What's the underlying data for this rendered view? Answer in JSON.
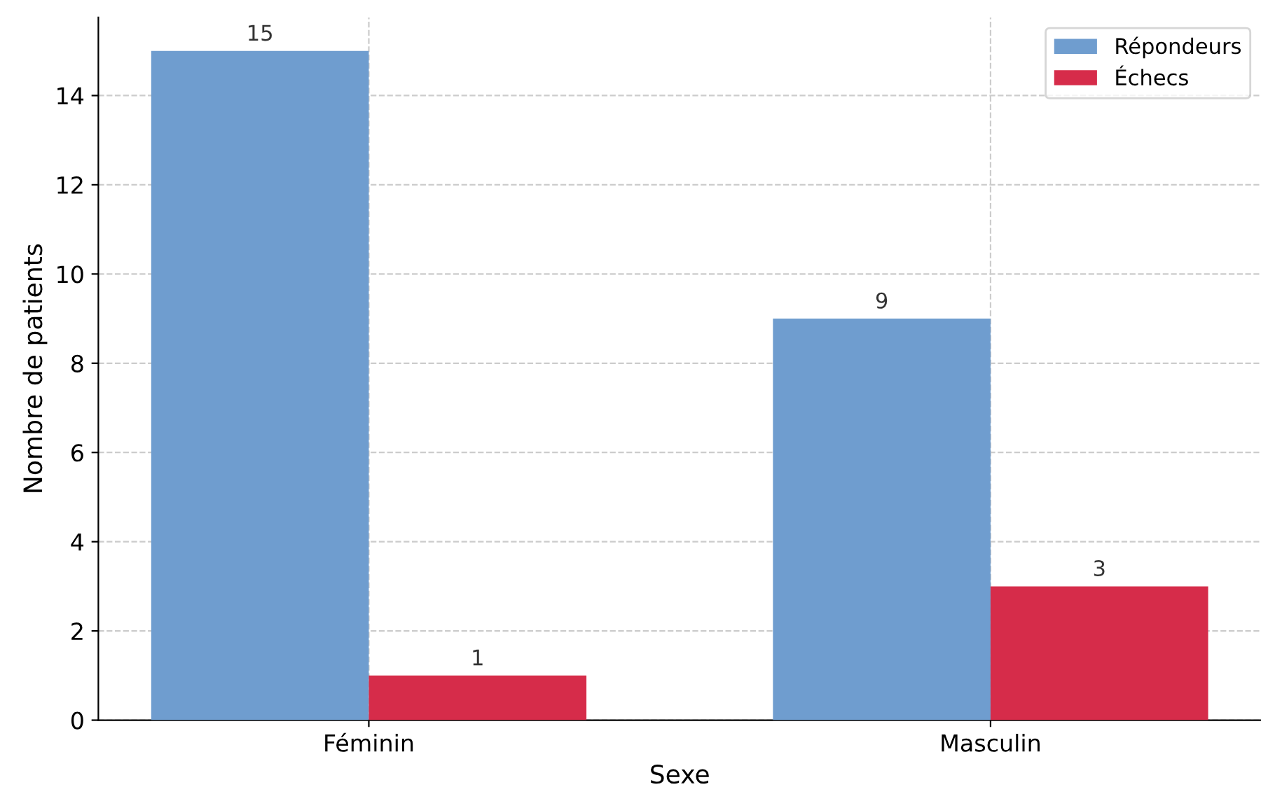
{
  "chart_data": {
    "type": "bar",
    "xlabel": "Sexe",
    "ylabel": "Nombre de patients",
    "categories": [
      "Féminin",
      "Masculin"
    ],
    "series": [
      {
        "name": "Répondeurs",
        "color": "#6f9dcf",
        "values": [
          15,
          9
        ]
      },
      {
        "name": "Échecs",
        "color": "#d62c4a",
        "values": [
          1,
          3
        ]
      }
    ],
    "ylim": [
      0,
      15.75
    ],
    "yticks": [
      0,
      2,
      4,
      6,
      8,
      10,
      12,
      14
    ],
    "grid": true,
    "legend": "top right",
    "data_labels": true
  }
}
